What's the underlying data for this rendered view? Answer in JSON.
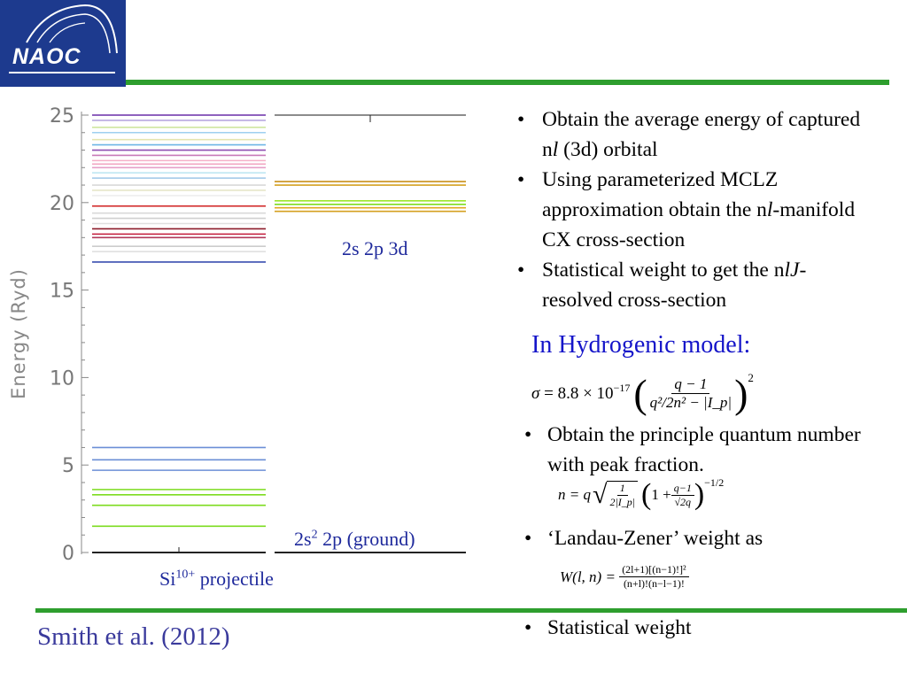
{
  "logo": {
    "text": "NAOC"
  },
  "footer": {
    "citation": "Smith et al. (2012)"
  },
  "chart": {
    "ylabel": "Energy (Ryd)",
    "yticks": [
      "0",
      "5",
      "10",
      "15",
      "20",
      "25"
    ],
    "level_labels": {
      "excited_base": "2s 2p 3d",
      "ground_pre": "2s",
      "ground_sup": "2",
      "ground_post": " 2p (ground)",
      "projectile_pre": "Si",
      "projectile_sup": "10+",
      "projectile_post": " projectile"
    }
  },
  "chart_data": {
    "type": "level diagram",
    "ylabel": "Energy (Ryd)",
    "ylim": [
      0,
      25
    ],
    "columns": [
      {
        "name": "Si10+ projectile",
        "levels": [
          {
            "energy": 0.0,
            "color": "#222222"
          },
          {
            "energy": 1.5,
            "color": "#7ddc1f"
          },
          {
            "energy": 2.7,
            "color": "#7ddc1f"
          },
          {
            "energy": 3.3,
            "color": "#7ddc1f"
          },
          {
            "energy": 3.6,
            "color": "#7ddc1f"
          },
          {
            "energy": 4.7,
            "color": "#6b8fd6"
          },
          {
            "energy": 5.3,
            "color": "#6b8fd6"
          },
          {
            "energy": 6.0,
            "color": "#6b8fd6"
          },
          {
            "energy": 16.6,
            "color": "#3a4fb0"
          },
          {
            "energy": 17.2,
            "color": "#dddddd"
          },
          {
            "energy": 17.5,
            "color": "#cccccc"
          },
          {
            "energy": 18.0,
            "color": "#b03a5b"
          },
          {
            "energy": 18.2,
            "color": "#c21a3a"
          },
          {
            "energy": 18.5,
            "color": "#8b1a2a"
          },
          {
            "energy": 18.8,
            "color": "#e0e0e0"
          },
          {
            "energy": 19.1,
            "color": "#cfcfcf"
          },
          {
            "energy": 19.4,
            "color": "#d9d9d9"
          },
          {
            "energy": 19.8,
            "color": "#d02020"
          },
          {
            "energy": 20.4,
            "color": "#eeeeee"
          },
          {
            "energy": 20.7,
            "color": "#e6e6c8"
          },
          {
            "energy": 21.0,
            "color": "#d8d8d8"
          },
          {
            "energy": 21.4,
            "color": "#9ec6e6"
          },
          {
            "energy": 21.7,
            "color": "#bfe6f2"
          },
          {
            "energy": 22.0,
            "color": "#e6a0c8"
          },
          {
            "energy": 22.2,
            "color": "#f2a6c2"
          },
          {
            "energy": 22.4,
            "color": "#f5b0c8"
          },
          {
            "energy": 22.7,
            "color": "#c87ab8"
          },
          {
            "energy": 23.0,
            "color": "#8f4fb0"
          },
          {
            "energy": 23.3,
            "color": "#6fb6e6"
          },
          {
            "energy": 23.6,
            "color": "#e5e5b0"
          },
          {
            "energy": 24.0,
            "color": "#9ed0f0"
          },
          {
            "energy": 24.3,
            "color": "#cfe6a0"
          },
          {
            "energy": 24.7,
            "color": "#b8a8e0"
          },
          {
            "energy": 25.0,
            "color": "#6a2fa8"
          }
        ]
      },
      {
        "name": "2s 2p 3d",
        "levels": [
          {
            "energy": 0.0,
            "color": "#222222"
          },
          {
            "energy": 19.5,
            "color": "#d4a020"
          },
          {
            "energy": 19.7,
            "color": "#e0a820"
          },
          {
            "energy": 19.9,
            "color": "#7ddc1f"
          },
          {
            "energy": 20.1,
            "color": "#9ce62a"
          },
          {
            "energy": 21.0,
            "color": "#d4a020"
          },
          {
            "energy": 21.2,
            "color": "#c9901a"
          },
          {
            "energy": 25.0,
            "color": "#666666"
          }
        ]
      }
    ]
  },
  "bullets_top": [
    {
      "pre": "Obtain the average energy of captured n",
      "italic": "l",
      "post": " (3d) orbital"
    },
    {
      "pre": "Using parameterized MCLZ approximation obtain the n",
      "italic": "l",
      "post": "-manifold CX cross-section"
    },
    {
      "pre": "Statistical weight to get the n",
      "italic": "lJ",
      "post": "-resolved cross-section"
    }
  ],
  "hydrogenic": {
    "title": "In Hydrogenic model:",
    "sigma_eq": {
      "lhs": "σ",
      "coef": "= 8.8 × 10",
      "exp": "−17",
      "num": "q − 1",
      "den": "q²/2n² − |I_p|",
      "power": "2"
    },
    "bullet_n": "Obtain the principle quantum number with peak fraction.",
    "n_eq": {
      "lhs": "n = q",
      "root_num": "1",
      "root_den": "2|I_p|",
      "paren_pre": "1 + ",
      "frac_num": "q−1",
      "frac_den": "√2q",
      "power": "−1/2"
    },
    "bullet_lz": "‘Landau-Zener’ weight as",
    "w_eq": {
      "lhs": "W(l, n)  =",
      "num": "(2l+1)[(n−1)!]²",
      "den": "(n+l)!(n−l−1)!"
    },
    "bullet_stat": "Statistical weight"
  }
}
